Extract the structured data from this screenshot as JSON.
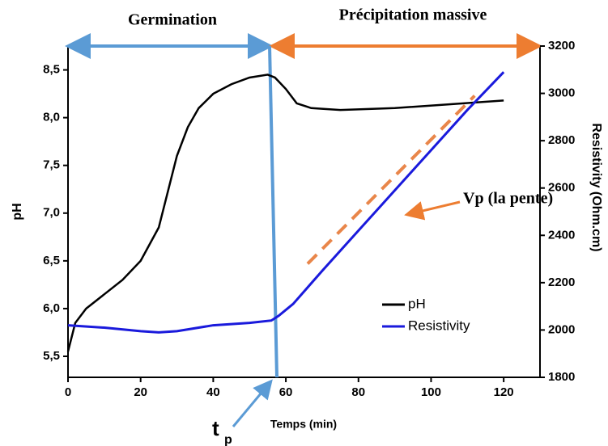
{
  "chart_data": {
    "type": "line",
    "xlabel": "Temps (min)",
    "ylabel": "pH",
    "y2label": "Resistivity (Ohm.cm)",
    "xlim": [
      0,
      130
    ],
    "xticks": [
      0,
      20,
      40,
      60,
      80,
      100,
      120
    ],
    "ylim": [
      5.28,
      8.75
    ],
    "yticks": [
      {
        "value": 5.5,
        "label": "5,5"
      },
      {
        "value": 6.0,
        "label": "6,0"
      },
      {
        "value": 6.5,
        "label": "6,5"
      },
      {
        "value": 7.0,
        "label": "7,0"
      },
      {
        "value": 7.5,
        "label": "7,5"
      },
      {
        "value": 8.0,
        "label": "8,0"
      },
      {
        "value": 8.5,
        "label": "8,5"
      }
    ],
    "y2lim": [
      1800,
      3200
    ],
    "y2ticks": [
      1800,
      2000,
      2200,
      2400,
      2600,
      2800,
      3000,
      3200
    ],
    "series": [
      {
        "name": "pH",
        "color": "#000000",
        "x": [
          0,
          2,
          5,
          10,
          15,
          20,
          25,
          28,
          30,
          33,
          36,
          40,
          45,
          50,
          55,
          57,
          60,
          63,
          67,
          75,
          90,
          105,
          120
        ],
        "values": [
          5.55,
          5.85,
          6.0,
          6.15,
          6.3,
          6.5,
          6.85,
          7.3,
          7.6,
          7.9,
          8.1,
          8.25,
          8.35,
          8.42,
          8.45,
          8.42,
          8.3,
          8.15,
          8.1,
          8.08,
          8.1,
          8.14,
          8.18
        ]
      },
      {
        "name": "Resistivity",
        "color": "#1a1adc",
        "axis": "y2",
        "x": [
          0,
          10,
          20,
          25,
          30,
          40,
          50,
          56,
          58,
          62,
          70,
          80,
          90,
          100,
          110,
          120
        ],
        "values": [
          2020,
          2010,
          1995,
          1990,
          1995,
          2020,
          2030,
          2040,
          2060,
          2110,
          2250,
          2420,
          2590,
          2760,
          2930,
          3090
        ]
      }
    ],
    "fit": {
      "color": "#e9864a",
      "axis": "y2",
      "x": [
        66,
        112
      ],
      "values": [
        2280,
        2990
      ]
    },
    "annotations": {
      "germination": "Germination",
      "precipitation": "Précipitation massive",
      "slope": "Vp (la pente)",
      "tp": "t",
      "tp_sub": "p"
    }
  }
}
